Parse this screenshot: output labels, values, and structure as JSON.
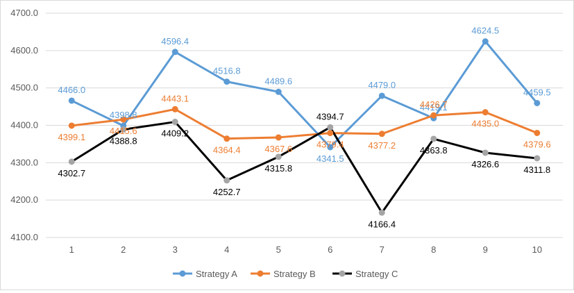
{
  "chart_data": {
    "type": "line",
    "title": "",
    "xlabel": "",
    "ylabel": "",
    "categories": [
      "1",
      "2",
      "3",
      "4",
      "5",
      "6",
      "7",
      "8",
      "9",
      "10"
    ],
    "ylim": [
      4100,
      4700
    ],
    "y_ticks": [
      "4100.0",
      "4200.0",
      "4300.0",
      "4400.0",
      "4500.0",
      "4600.0",
      "4700.0"
    ],
    "grid": true,
    "legend_position": "bottom",
    "series": [
      {
        "name": "Strategy A",
        "color": "#5b9bd5",
        "values": [
          4466.0,
          4398.8,
          4596.4,
          4516.8,
          4489.6,
          4341.5,
          4479.0,
          4419.1,
          4624.5,
          4459.5
        ],
        "labels": [
          "4466.0",
          "4398.8",
          "4596.4",
          "4516.8",
          "4489.6",
          "4341.5",
          "4479.0",
          "4419.1",
          "4624.5",
          "4459.5"
        ]
      },
      {
        "name": "Strategy B",
        "color": "#ed7d31",
        "values": [
          4399.1,
          4415.6,
          4443.1,
          4364.4,
          4367.6,
          4379.4,
          4377.2,
          4426.7,
          4435.0,
          4379.6
        ],
        "labels": [
          "4399.1",
          "4415.6",
          "4443.1",
          "4364.4",
          "4367.6",
          "4379.4",
          "4377.2",
          "4426.7",
          "4435.0",
          "4379.6"
        ]
      },
      {
        "name": "Strategy C",
        "color": "#000000",
        "marker_color": "#a5a5a5",
        "values": [
          4302.7,
          4388.8,
          4409.2,
          4252.7,
          4315.8,
          4394.7,
          4166.4,
          4363.8,
          4326.6,
          4311.8
        ],
        "labels": [
          "4302.7",
          "4388.8",
          "4409.2",
          "4252.7",
          "4315.8",
          "4394.7",
          "4166.4",
          "4363.8",
          "4326.6",
          "4311.8"
        ]
      }
    ]
  }
}
